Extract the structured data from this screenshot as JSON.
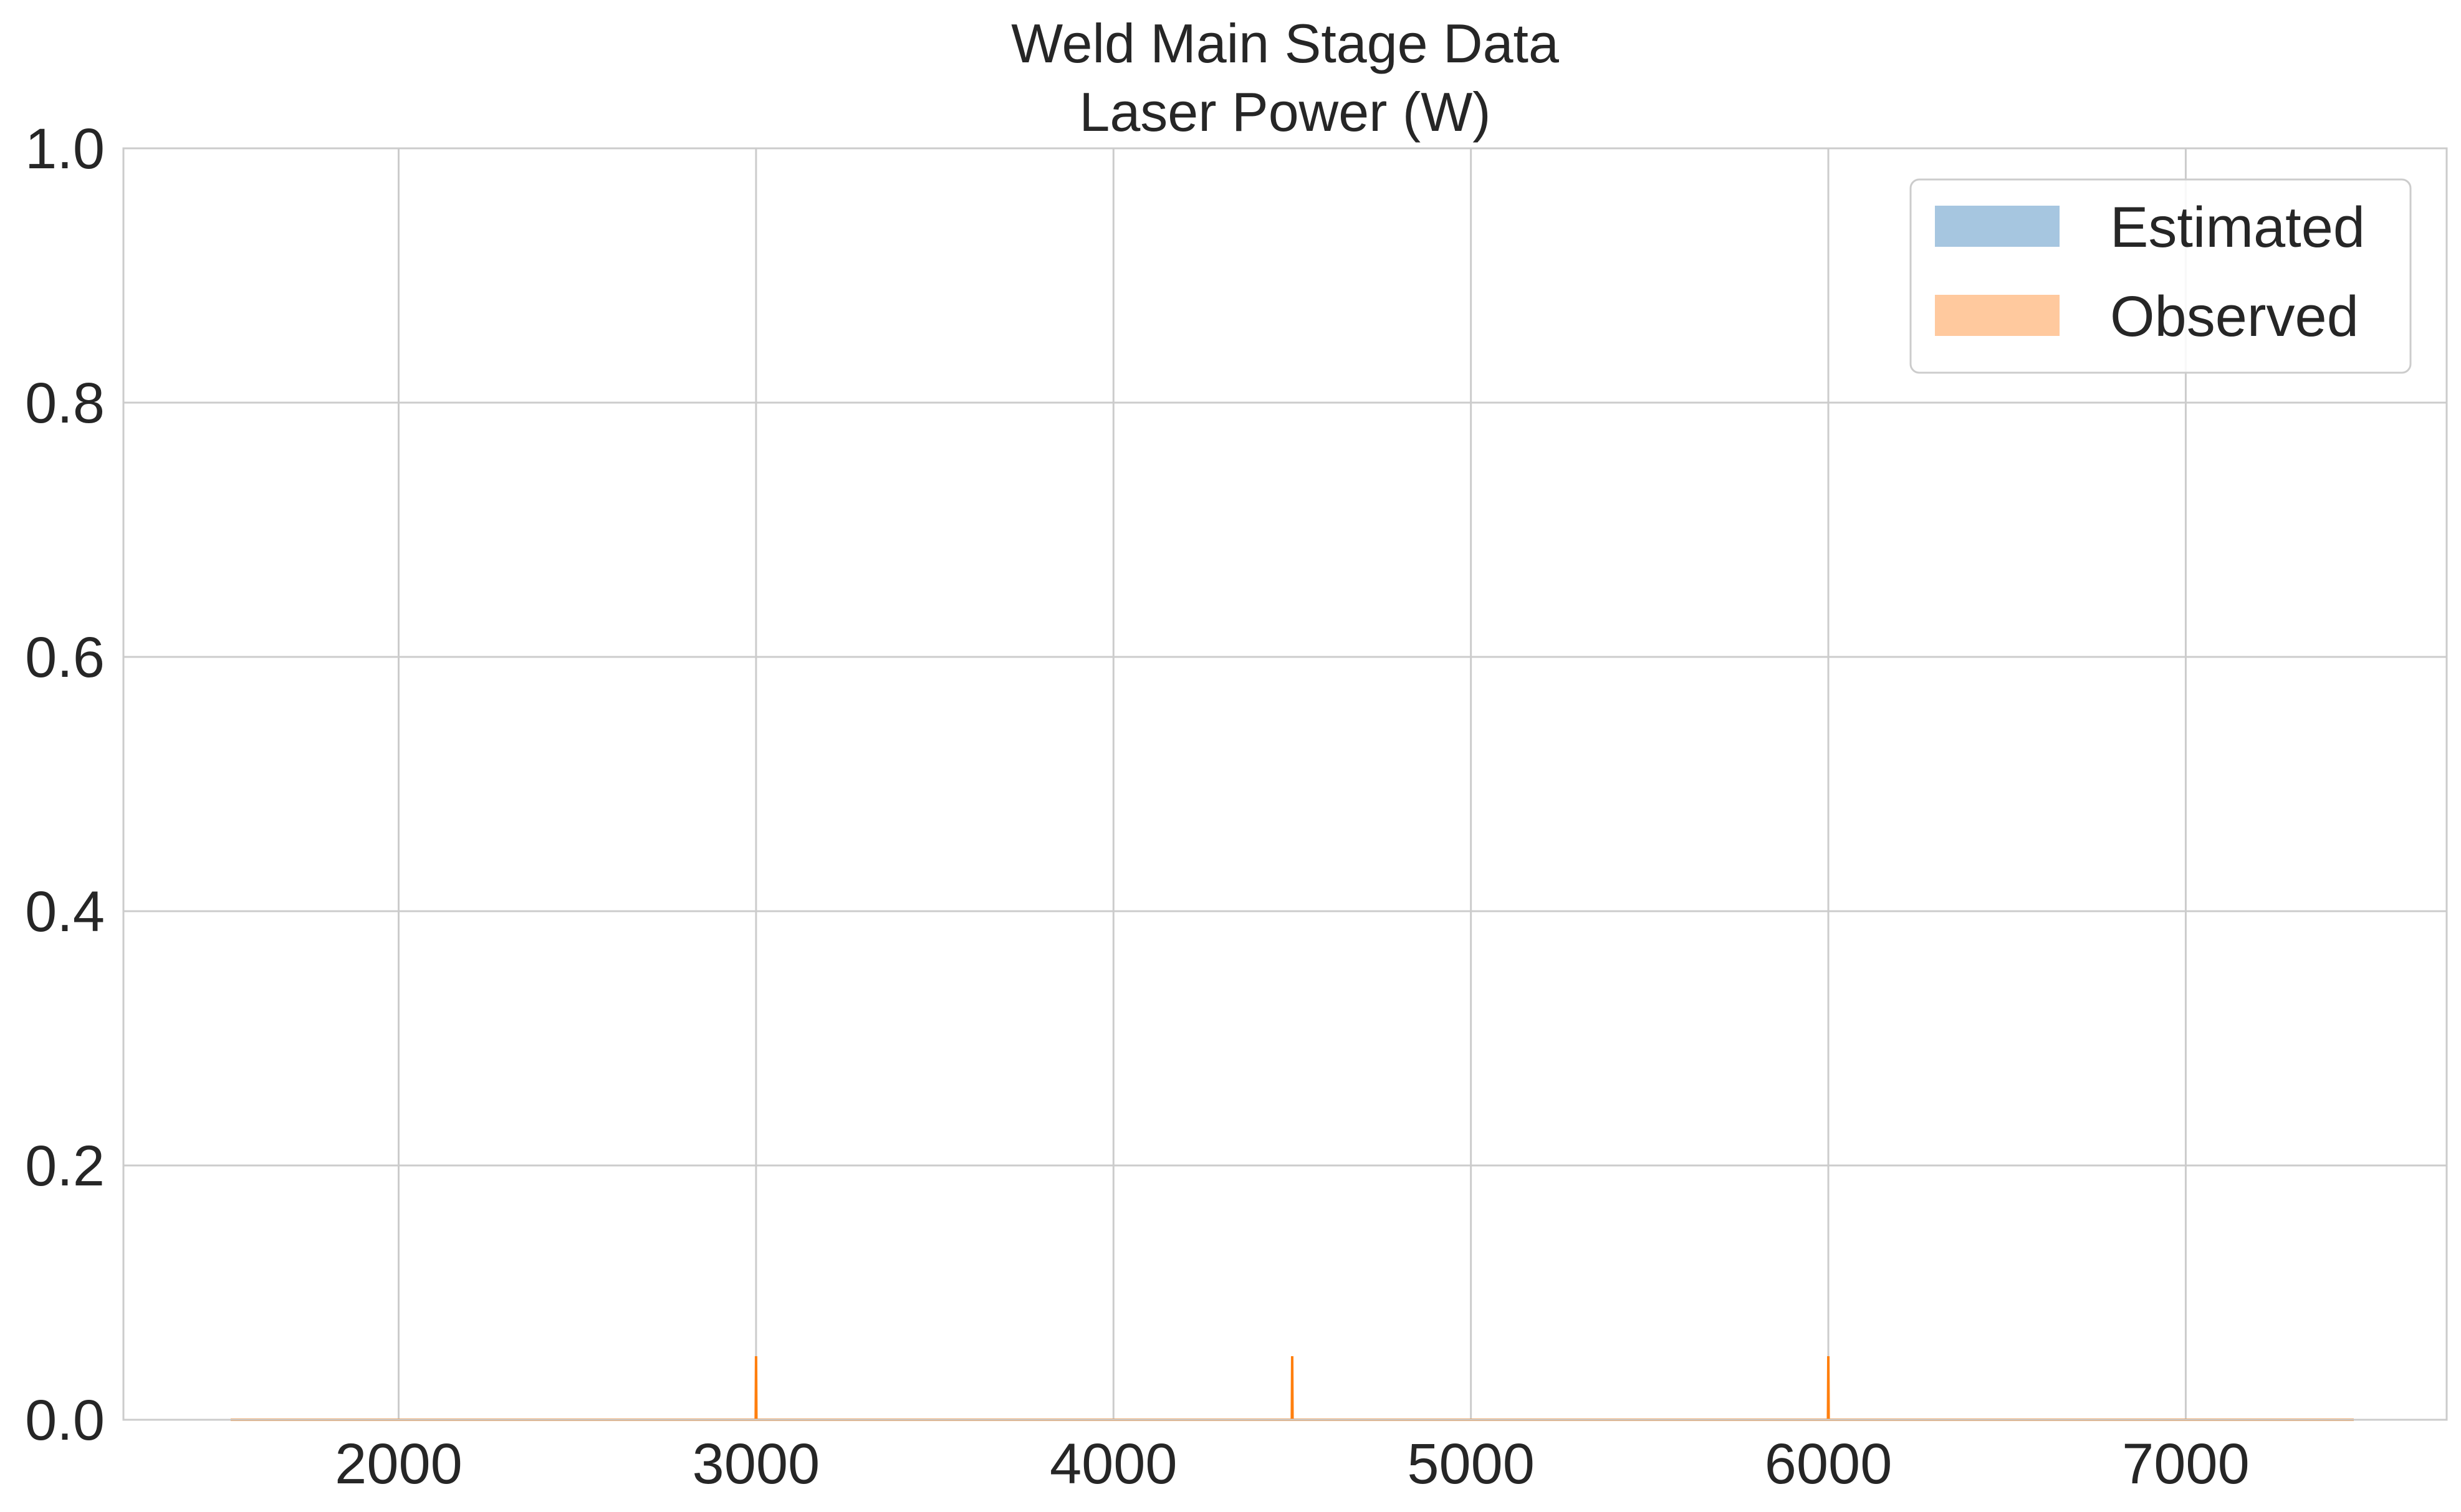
{
  "chart_data": {
    "type": "area",
    "title": "Weld Main Stage Data",
    "subtitle": "Laser Power (W)",
    "xlabel": "",
    "ylabel": "",
    "xlim": [
      1230,
      7730
    ],
    "ylim": [
      0.0,
      1.0
    ],
    "xticks": [
      2000,
      3000,
      4000,
      5000,
      6000,
      7000
    ],
    "yticks": [
      0.0,
      0.2,
      0.4,
      0.6,
      0.8,
      1.0
    ],
    "xtick_labels": [
      "2000",
      "3000",
      "4000",
      "5000",
      "6000",
      "7000"
    ],
    "ytick_labels": [
      "0.0",
      "0.2",
      "0.4",
      "0.6",
      "0.8",
      "1.0"
    ],
    "grid": true,
    "legend_position": "top-right",
    "series": [
      {
        "name": "Estimated",
        "color": "#a6c6e0",
        "line_color": "#1f77b4",
        "x": [
          1530,
          7470
        ],
        "y": [
          0.0,
          0.0
        ]
      },
      {
        "name": "Observed",
        "color": "#ffc99e",
        "line_color": "#ff7f0e",
        "x": [
          1530,
          2999,
          3000,
          3001,
          4499,
          4500,
          4501,
          5999,
          6000,
          6001,
          7470
        ],
        "y": [
          0.0,
          0.0,
          0.05,
          0.0,
          0.0,
          0.05,
          0.0,
          0.0,
          0.05,
          0.0,
          0.0
        ]
      }
    ]
  }
}
